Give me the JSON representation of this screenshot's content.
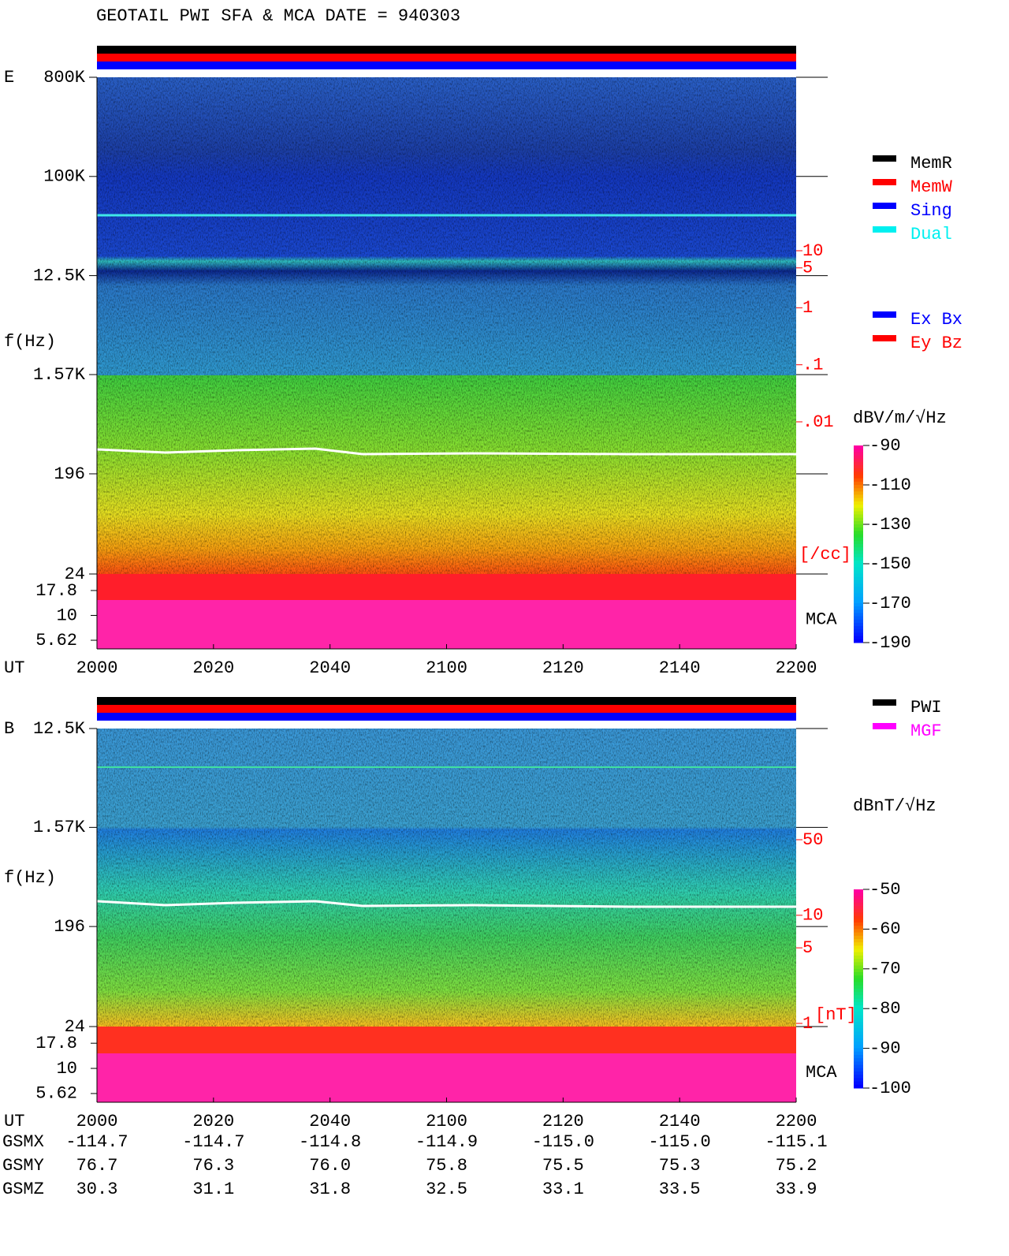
{
  "title": "GEOTAIL  PWI SFA & MCA   DATE = 940303",
  "chart_data": [
    {
      "type": "spectrogram",
      "panel_label": "E",
      "y_label": "f(Hz)",
      "x_label": "UT",
      "categories": [
        "2000",
        "2020",
        "2040",
        "2100",
        "2120",
        "2140",
        "2200"
      ],
      "yscale": "log",
      "ylim": [
        24,
        800000
      ],
      "yticks": [
        {
          "value": 800000,
          "label": "800K"
        },
        {
          "value": 100000,
          "label": "100K"
        },
        {
          "value": 12500,
          "label": "12.5K"
        },
        {
          "value": 1570,
          "label": "1.57K"
        },
        196,
        24
      ],
      "mca_label": "MCA",
      "mca_ylim": [
        4.6,
        26.1
      ],
      "mca_ticks": [
        17.8,
        10,
        5.62
      ],
      "density_label": "[/cc]",
      "density_lim": [
        0.01,
        10
      ],
      "density_ticks": [
        10,
        5,
        1,
        {
          "value": 0.1,
          "label": ".1"
        },
        {
          "value": 0.01,
          "label": ".01"
        }
      ],
      "colorbar_label": "dBV/m/√Hz",
      "clim": [
        -190,
        -90
      ],
      "cticks": [
        -90,
        -110,
        -130,
        -150,
        -170,
        -190
      ],
      "legend": [
        {
          "name": "MemR",
          "color": "#000000"
        },
        {
          "name": "MemW",
          "color": "#ff0000"
        },
        {
          "name": "Sing",
          "color": "#0000ff"
        },
        {
          "name": "Dual",
          "color": "#00f0f0"
        }
      ],
      "legend2": [
        {
          "name": "Ex Bx",
          "color": "#0000ff"
        },
        {
          "name": "Ey Bz",
          "color": "#ff0000"
        }
      ]
    },
    {
      "type": "spectrogram",
      "panel_label": "B",
      "y_label": "f(Hz)",
      "x_label": "UT",
      "categories": [
        "2000",
        "2020",
        "2040",
        "2100",
        "2120",
        "2140",
        "2200"
      ],
      "yscale": "log",
      "ylim": [
        24,
        12500
      ],
      "yticks": [
        {
          "value": 12500,
          "label": "12.5K"
        },
        {
          "value": 1570,
          "label": "1.57K"
        },
        196,
        24
      ],
      "mca_label": "MCA",
      "mca_ylim": [
        4.6,
        26.1
      ],
      "mca_ticks": [
        17.8,
        10,
        5.62
      ],
      "density_label": "[nT]",
      "density_lim": [
        1,
        50
      ],
      "density_ticks": [
        50,
        10,
        5,
        1
      ],
      "colorbar_label": "dBnT/√Hz",
      "clim": [
        -100,
        -50
      ],
      "cticks": [
        -50,
        -60,
        -70,
        -80,
        -90,
        -100
      ],
      "legend": [
        {
          "name": "PWI",
          "color": "#000000"
        },
        {
          "name": "MGF",
          "color": "#ff00ff"
        }
      ]
    }
  ],
  "orbit": [
    {
      "label": "GSMX",
      "values": [
        "-114.7",
        "-114.7",
        "-114.8",
        "-114.9",
        "-115.0",
        "-115.0",
        "-115.1"
      ]
    },
    {
      "label": "GSMY",
      "values": [
        "76.7",
        "76.3",
        "76.0",
        "75.8",
        "75.5",
        "75.3",
        "75.2"
      ]
    },
    {
      "label": "GSMZ",
      "values": [
        "30.3",
        "31.1",
        "31.8",
        "32.5",
        "33.1",
        "33.5",
        "33.9"
      ]
    }
  ]
}
